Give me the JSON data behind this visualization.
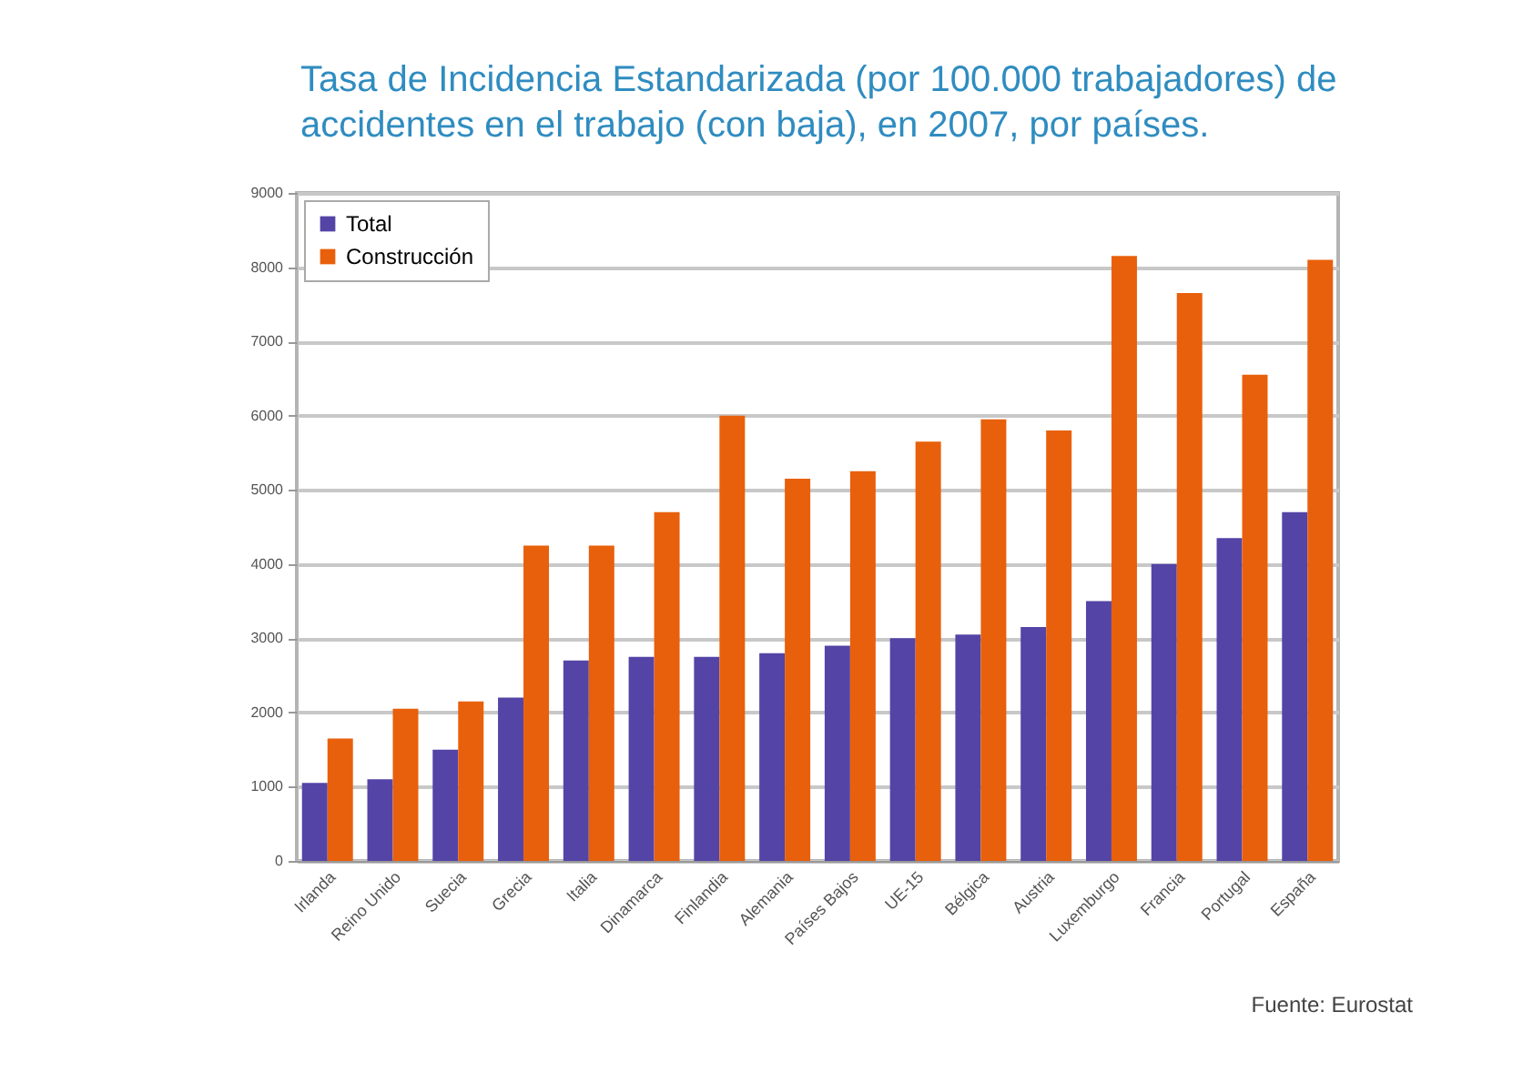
{
  "chart_data": {
    "type": "bar",
    "title": "Tasa de Incidencia Estandarizada (por 100.000 trabajadores) de accidentes en el trabajo (con baja), en 2007, por países.",
    "categories": [
      "Irlanda",
      "Reino Unido",
      "Suecia",
      "Grecia",
      "Italia",
      "Dinamarca",
      "Finlandia",
      "Alemania",
      "Países Bajos",
      "UE-15",
      "Bélgica",
      "Austria",
      "Luxemburgo",
      "Francia",
      "Portugal",
      "España"
    ],
    "series": [
      {
        "name": "Total",
        "color": "#5444a6",
        "values": [
          1050,
          1100,
          1500,
          2200,
          2700,
          2750,
          2750,
          2800,
          2900,
          3000,
          3050,
          3150,
          3500,
          4000,
          4350,
          4700
        ]
      },
      {
        "name": "Construcción",
        "color": "#e8600c",
        "values": [
          1650,
          2050,
          2150,
          4250,
          4250,
          4700,
          6000,
          5150,
          5250,
          5650,
          5950,
          5800,
          8150,
          7650,
          6550,
          8100
        ]
      }
    ],
    "ylim": [
      0,
      9000
    ],
    "yticks": [
      0,
      1000,
      2000,
      3000,
      4000,
      5000,
      6000,
      7000,
      8000,
      9000
    ],
    "grid": "y",
    "legend": "top left",
    "annotations": [
      "Fuente: Eurostat"
    ]
  }
}
